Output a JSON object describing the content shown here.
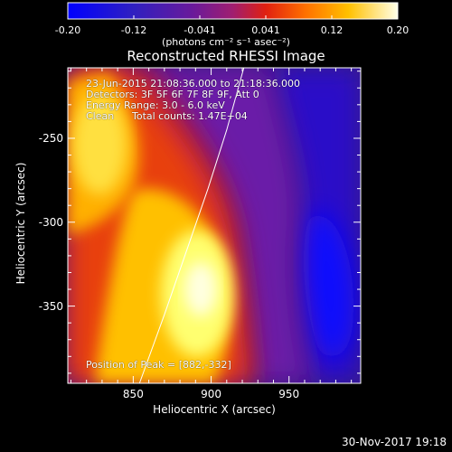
{
  "colorbar": {
    "tick_labels": [
      "-0.20",
      "-0.12",
      "-0.041",
      "0.041",
      "0.12",
      "0.20"
    ],
    "unit_label": "(photons cm⁻² s⁻¹ asec⁻²)"
  },
  "chart_data": {
    "type": "heatmap",
    "title": "Reconstructed RHESSI Image",
    "xlabel": "Heliocentric X (arcsec)",
    "ylabel": "Heliocentric Y (arcsec)",
    "xlim": [
      808,
      996
    ],
    "ylim": [
      -396,
      -208
    ],
    "x_ticks": [
      "850",
      "900",
      "950"
    ],
    "x_tick_values": [
      850,
      900,
      950
    ],
    "y_ticks": [
      "-250",
      "-300",
      "-350"
    ],
    "y_tick_values": [
      -250,
      -300,
      -350
    ],
    "value_range": [
      -0.2,
      0.2
    ],
    "colormap": [
      "#0000ff",
      "#5a1a9a",
      "#8a1e8a",
      "#d02020",
      "#ff6a00",
      "#ffb000",
      "#ffff60",
      "#ffffff"
    ],
    "peak_position": [
      882,
      -332
    ],
    "limb_curve": [
      [
        854,
        -396
      ],
      [
        870,
        -355
      ],
      [
        885,
        -315
      ],
      [
        898,
        -280
      ],
      [
        910,
        -245
      ],
      [
        921,
        -208
      ]
    ],
    "annotations": {
      "time_range": "23-Jun-2015 21:08:36.000 to 21:18:36.000",
      "detectors": "Detectors: 3F 5F 6F 7F 8F 9F, Att 0",
      "energy": "Energy Range: 3.0 - 6.0 keV",
      "method": "Clean",
      "counts": "Total counts: 1.47E+04",
      "peak_label": "Position of Peak = [882,-332]"
    }
  },
  "footer": {
    "timestamp": "30-Nov-2017 19:18"
  }
}
